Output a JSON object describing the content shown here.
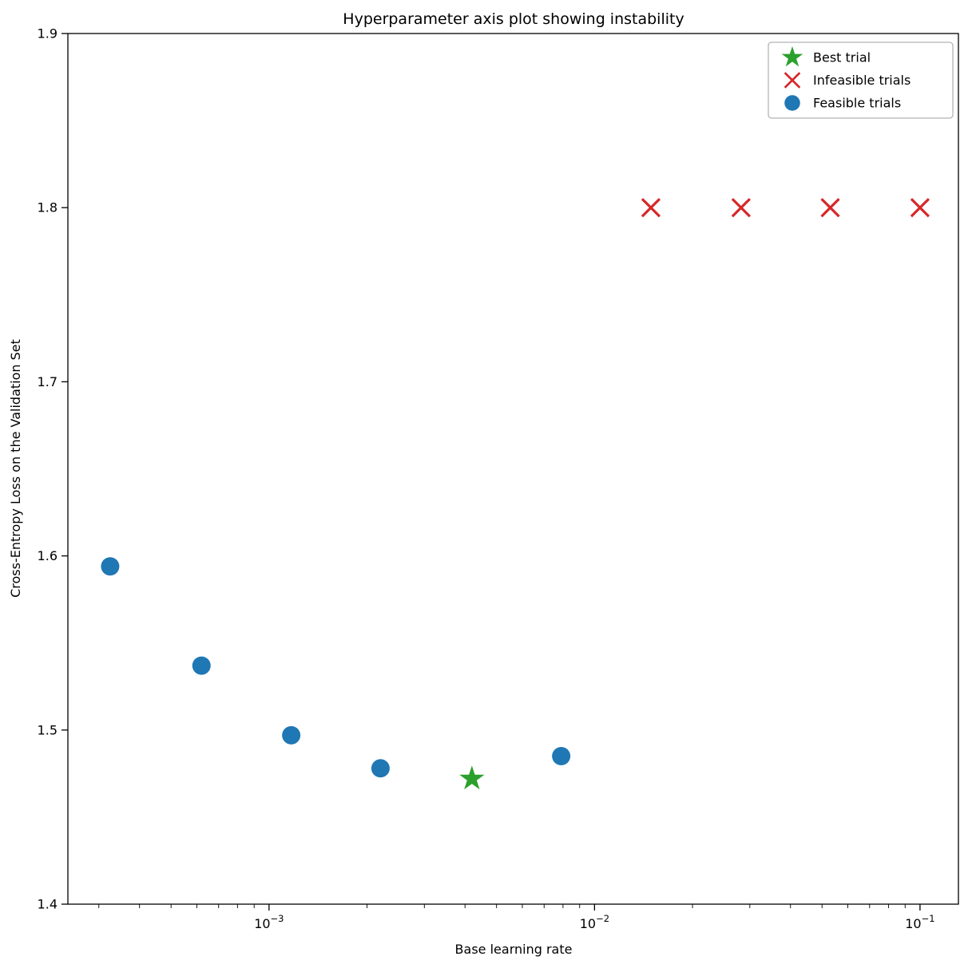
{
  "chart_data": {
    "type": "scatter",
    "title": "Hyperparameter axis plot showing instability",
    "xlabel": "Base learning rate",
    "ylabel": "Cross-Entropy Loss on the Validation Set",
    "xscale": "log",
    "xlim_log10": [
      -3.618,
      -0.882
    ],
    "ylim": [
      1.4,
      1.9
    ],
    "yticks": [
      1.4,
      1.5,
      1.6,
      1.7,
      1.8,
      1.9
    ],
    "xticks": [
      {
        "value": 0.001,
        "base": "10",
        "exponent": "−3"
      },
      {
        "value": 0.01,
        "base": "10",
        "exponent": "−2"
      },
      {
        "value": 0.1,
        "base": "10",
        "exponent": "−1"
      }
    ],
    "grid": false,
    "legend_position": "upper right",
    "colors": {
      "best": "#2ca02c",
      "infeasible": "#d62728",
      "feasible": "#1f77b4",
      "axis": "#000000",
      "legend_border": "#b3b3b3"
    },
    "series": [
      {
        "name": "Best trial",
        "marker": "star",
        "color": "#2ca02c",
        "points": [
          {
            "x": 0.0042,
            "y": 1.472
          }
        ]
      },
      {
        "name": "Infeasible trials",
        "marker": "x",
        "color": "#d62728",
        "points": [
          {
            "x": 0.0149,
            "y": 1.8
          },
          {
            "x": 0.0282,
            "y": 1.8
          },
          {
            "x": 0.053,
            "y": 1.8
          },
          {
            "x": 0.1,
            "y": 1.8
          }
        ]
      },
      {
        "name": "Feasible trials",
        "marker": "circle",
        "color": "#1f77b4",
        "points": [
          {
            "x": 0.000325,
            "y": 1.594
          },
          {
            "x": 0.00062,
            "y": 1.537
          },
          {
            "x": 0.00117,
            "y": 1.497
          },
          {
            "x": 0.0022,
            "y": 1.478
          },
          {
            "x": 0.0079,
            "y": 1.485
          }
        ]
      }
    ]
  }
}
